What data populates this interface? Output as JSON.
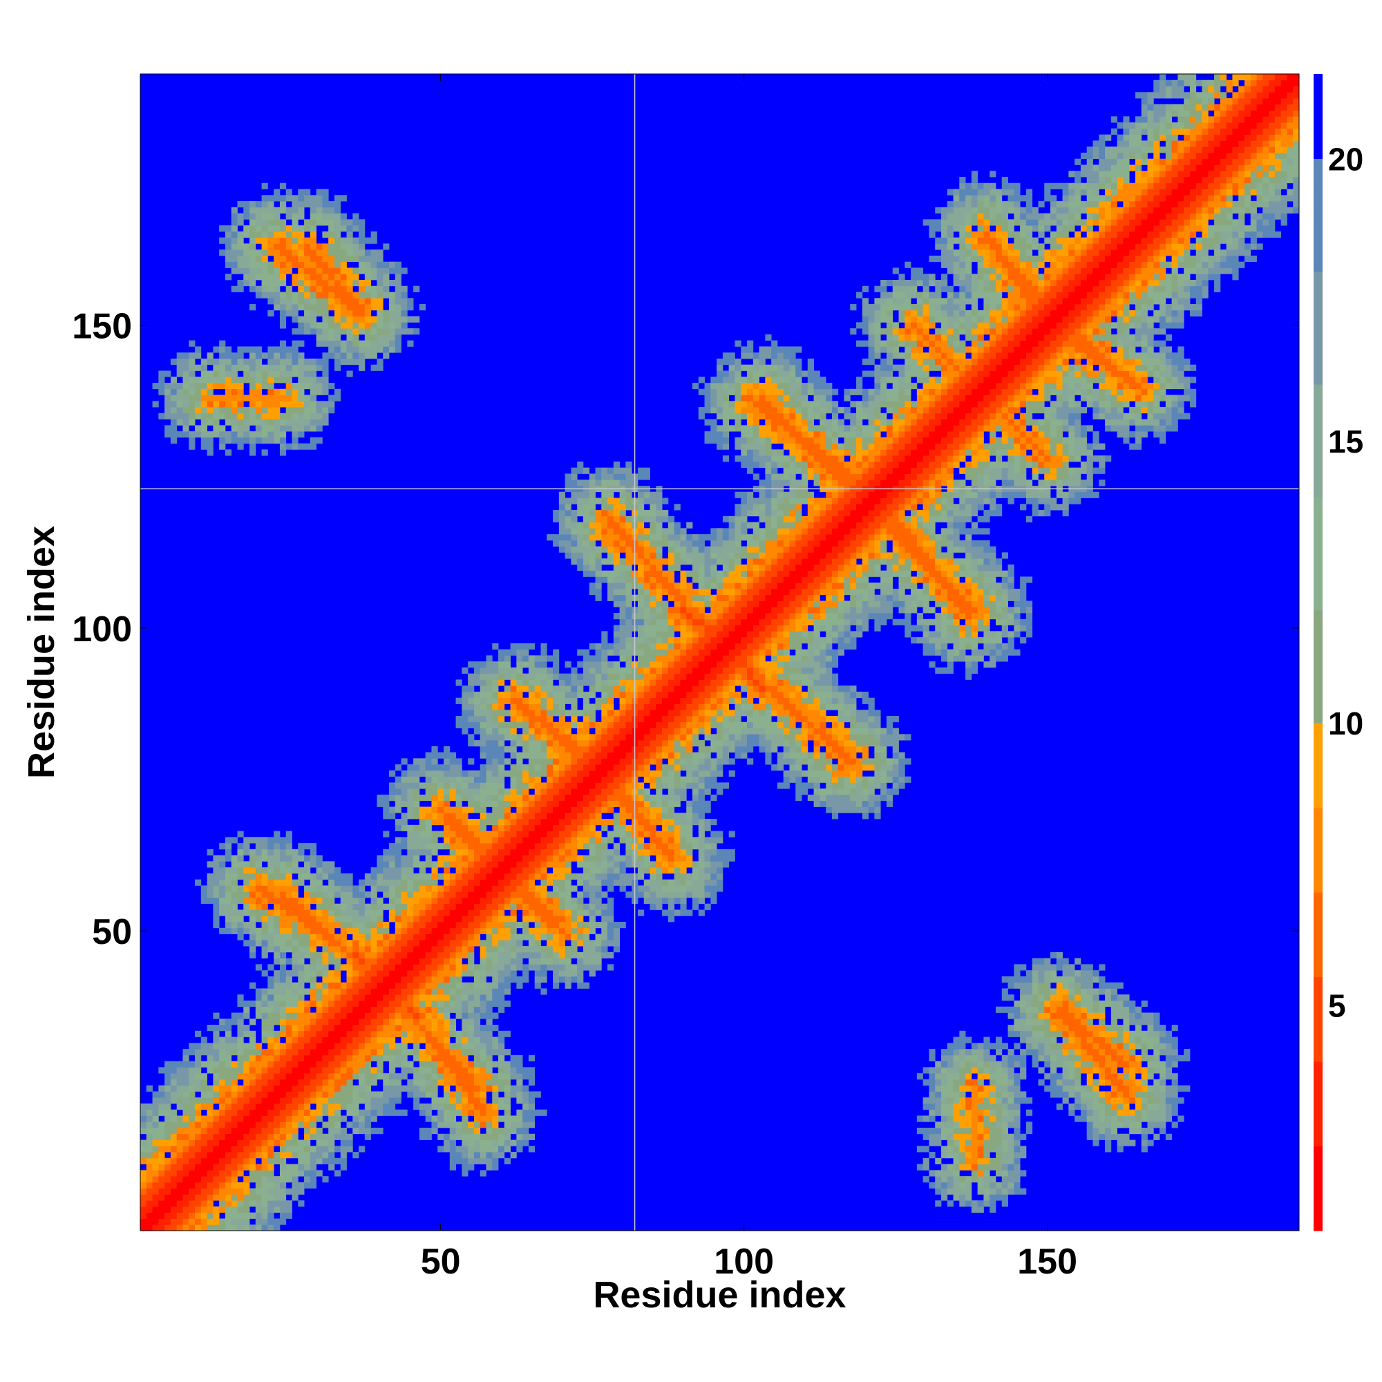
{
  "chart_data": {
    "type": "heatmap",
    "title": "",
    "xlabel": "Residue index",
    "ylabel": "Residue index",
    "x_range": [
      1,
      191
    ],
    "y_range": [
      1,
      191
    ],
    "x_ticks": [
      50,
      100,
      150
    ],
    "y_ticks": [
      50,
      100,
      150
    ],
    "colorbar": {
      "range": [
        1,
        21.5
      ],
      "ticks": [
        5,
        10,
        15,
        20
      ],
      "levels": [
        "#ff0000",
        "#ff2200",
        "#ff4400",
        "#ff6600",
        "#ff8800",
        "#ffa000",
        "#8aa880",
        "#8ab090",
        "#88a898",
        "#7898a8",
        "#5a86b8",
        "#0000ff"
      ],
      "level_bounds": [
        1,
        2.5,
        4,
        5.5,
        7,
        8.5,
        10,
        12,
        14,
        16,
        18,
        20,
        21.5
      ]
    },
    "helix_separators": {
      "x": 82,
      "y": 123
    },
    "contact_bands": [
      {
        "kind": "diagonal",
        "from": [
          1,
          1
        ],
        "to": [
          191,
          191
        ],
        "distance_core": 2
      },
      {
        "kind": "secondary_contact",
        "from": [
          12,
          16
        ],
        "to": [
          30,
          24
        ],
        "distance": 6
      },
      {
        "kind": "secondary_contact",
        "from": [
          20,
          57
        ],
        "to": [
          33,
          48
        ],
        "distance": 6
      },
      {
        "kind": "secondary_contact",
        "from": [
          36,
          46
        ],
        "to": [
          42,
          38
        ],
        "distance": 5
      },
      {
        "kind": "secondary_contact",
        "from": [
          47,
          34
        ],
        "to": [
          56,
          24
        ],
        "distance": 6
      },
      {
        "kind": "secondary_contact",
        "from": [
          50,
          70
        ],
        "to": [
          60,
          61
        ],
        "distance": 6
      },
      {
        "kind": "secondary_contact",
        "from": [
          62,
          57
        ],
        "to": [
          70,
          50
        ],
        "distance": 6
      },
      {
        "kind": "secondary_contact",
        "from": [
          62,
          88
        ],
        "to": [
          74,
          79
        ],
        "distance": 6
      },
      {
        "kind": "secondary_contact",
        "from": [
          78,
          73
        ],
        "to": [
          88,
          63
        ],
        "distance": 6
      },
      {
        "kind": "secondary_contact",
        "from": [
          78,
          117
        ],
        "to": [
          90,
          105
        ],
        "distance": 6
      },
      {
        "kind": "secondary_contact",
        "from": [
          90,
          103
        ],
        "to": [
          100,
          95
        ],
        "distance": 5
      },
      {
        "kind": "secondary_contact",
        "from": [
          104,
          90
        ],
        "to": [
          118,
          78
        ],
        "distance": 6
      },
      {
        "kind": "secondary_contact",
        "from": [
          102,
          137
        ],
        "to": [
          118,
          125
        ],
        "distance": 6
      },
      {
        "kind": "secondary_contact",
        "from": [
          122,
          118
        ],
        "to": [
          138,
          103
        ],
        "distance": 6
      },
      {
        "kind": "secondary_contact",
        "from": [
          128,
          150
        ],
        "to": [
          148,
          130
        ],
        "distance": 6
      },
      {
        "kind": "secondary_contact",
        "from": [
          140,
          165
        ],
        "to": [
          148,
          153
        ],
        "distance": 6
      },
      {
        "kind": "secondary_contact",
        "from": [
          153,
          150
        ],
        "to": [
          163,
          141
        ],
        "distance": 6
      },
      {
        "kind": "secondary_contact",
        "from": [
          23,
          163
        ],
        "to": [
          37,
          152
        ],
        "distance": 6
      },
      {
        "kind": "secondary_contact",
        "from": [
          152,
          37
        ],
        "to": [
          163,
          28
        ],
        "distance": 6
      },
      {
        "kind": "secondary_contact",
        "from": [
          12,
          138
        ],
        "to": [
          24,
          138
        ],
        "distance": 7
      }
    ]
  }
}
